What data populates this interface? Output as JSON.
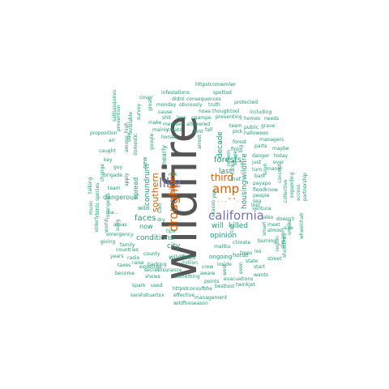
{
  "colors": {
    "tier1": "#555555",
    "tier2": "#7570b3",
    "tier3": "#d95f02",
    "tier4": "#1b9e77"
  },
  "words": [
    {
      "text": "wildfire",
      "tier": "tier1",
      "weight": 60
    },
    {
      "text": "california",
      "tier": "tier2",
      "weight": 14
    },
    {
      "text": "like",
      "tier": "tier2",
      "weight": 14
    },
    {
      "text": "drought",
      "tier": "tier3",
      "weight": 13
    },
    {
      "text": "amp",
      "tier": "tier3",
      "weight": 12
    },
    {
      "text": "third",
      "tier": "tier3",
      "weight": 10
    },
    {
      "text": "southern",
      "tier": "tier3",
      "weight": 9
    },
    {
      "text": "sierra",
      "tier": "tier3",
      "weight": 8
    },
    {
      "text": "housing",
      "tier": "tier4",
      "weight": 8
    },
    {
      "text": "wildfire",
      "tier": "tier4",
      "weight": 8
    },
    {
      "text": "forests",
      "tier": "tier4",
      "weight": 8
    },
    {
      "text": "faces",
      "tier": "tier4",
      "weight": 8
    },
    {
      "text": "decade",
      "tier": "tier4",
      "weight": 7
    },
    {
      "text": "conundrum",
      "tier": "tier4",
      "weight": 7
    },
    {
      "text": "killed",
      "tier": "tier4",
      "weight": 7
    },
    {
      "text": "last",
      "tier": "tier4",
      "weight": 7
    },
    {
      "text": "will",
      "tier": "tier4",
      "weight": 7
    },
    {
      "text": "opinion",
      "tier": "tier4",
      "weight": 6
    },
    {
      "text": "conditions",
      "tier": "tier4",
      "weight": 6
    },
    {
      "text": "spread",
      "tier": "tier4",
      "weight": 6
    },
    {
      "text": "nearly",
      "tier": "tier4",
      "weight": 6
    },
    {
      "text": "city",
      "tier": "tier4",
      "weight": 6
    },
    {
      "text": "wildfires",
      "tier": "tier4",
      "weight": 5
    },
    {
      "text": "new",
      "tier": "tier4",
      "weight": 5
    },
    {
      "text": "now",
      "tier": "tier4",
      "weight": 5
    },
    {
      "text": "can",
      "tier": "tier4",
      "weight": 5
    },
    {
      "text": "wild",
      "tier": "tier4",
      "weight": 5
    },
    {
      "text": "dangerous",
      "tier": "tier4",
      "weight": 5
    },
    {
      "text": "emergency",
      "tier": "tier4",
      "weight": 4
    },
    {
      "text": "ongoing",
      "tier": "tier4",
      "weight": 4
    },
    {
      "text": "horse",
      "tier": "tier4",
      "weight": 4
    },
    {
      "text": "climate",
      "tier": "tier4",
      "weight": 4
    },
    {
      "text": "burning",
      "tier": "tier4",
      "weight": 4
    },
    {
      "text": "state",
      "tier": "tier4",
      "weight": 4
    },
    {
      "text": "trees",
      "tier": "tier4",
      "weight": 4
    },
    {
      "text": "county",
      "tier": "tier4",
      "weight": 4
    },
    {
      "text": "risk",
      "tier": "tier4",
      "weight": 4
    },
    {
      "text": "million",
      "tier": "tier4",
      "weight": 4
    },
    {
      "text": "malibu",
      "tier": "tier4",
      "weight": 4
    },
    {
      "text": "people",
      "tier": "tier4",
      "weight": 4
    },
    {
      "text": "fire",
      "tier": "tier4",
      "weight": 4
    },
    {
      "text": "season",
      "tier": "tier4",
      "weight": 4
    },
    {
      "text": "ventura",
      "tier": "tier4",
      "weight": 4
    },
    {
      "text": "expected",
      "tier": "tier4",
      "weight": 4
    },
    {
      "text": "something",
      "tier": "tier4",
      "weight": 4
    },
    {
      "text": "insurance",
      "tier": "tier4",
      "weight": 4
    },
    {
      "text": "evacuations",
      "tier": "tier4",
      "weight": 3
    },
    {
      "text": "management",
      "tier": "tier4",
      "weight": 3
    },
    {
      "text": "wildfireseason",
      "tier": "tier4",
      "weight": 3
    },
    {
      "text": "httpstconxvfbhe",
      "tier": "tier4",
      "weight": 3
    },
    {
      "text": "sarahstuartxx",
      "tier": "tier4",
      "weight": 3
    },
    {
      "text": "besttest",
      "tier": "tier4",
      "weight": 3
    },
    {
      "text": "twinkjet",
      "tier": "tier4",
      "weight": 3
    },
    {
      "text": "effective",
      "tier": "tier4",
      "weight": 3
    },
    {
      "text": "points",
      "tier": "tier4",
      "weight": 3
    },
    {
      "text": "shows",
      "tier": "tier4",
      "weight": 3
    },
    {
      "text": "secret",
      "tier": "tier4",
      "weight": 3
    },
    {
      "text": "used",
      "tier": "tier4",
      "weight": 3
    },
    {
      "text": "spark",
      "tier": "tier4",
      "weight": 3
    },
    {
      "text": "become",
      "tier": "tier4",
      "weight": 3
    },
    {
      "text": "taxes",
      "tier": "tier4",
      "weight": 3
    },
    {
      "text": "raise",
      "tier": "tier4",
      "weight": 3
    },
    {
      "text": "backing",
      "tier": "tier4",
      "weight": 3
    },
    {
      "text": "radio",
      "tier": "tier4",
      "weight": 3
    },
    {
      "text": "years",
      "tier": "tier4",
      "weight": 3
    },
    {
      "text": "countries",
      "tier": "tier4",
      "weight": 3
    },
    {
      "text": "giving",
      "tier": "tier4",
      "weight": 3
    },
    {
      "text": "family",
      "tier": "tier4",
      "weight": 3
    },
    {
      "text": "tips",
      "tier": "tier4",
      "weight": 3
    },
    {
      "text": "dry",
      "tier": "tier4",
      "weight": 3
    },
    {
      "text": "areas",
      "tier": "tier4",
      "weight": 3
    },
    {
      "text": "world",
      "tier": "tier4",
      "weight": 3
    },
    {
      "text": "song",
      "tier": "tier4",
      "weight": 3
    },
    {
      "text": "music",
      "tier": "tier4",
      "weight": 3
    },
    {
      "text": "elderly",
      "tier": "tier4",
      "weight": 3
    },
    {
      "text": "team",
      "tier": "tier4",
      "weight": 3
    },
    {
      "text": "brigade",
      "tier": "tier4",
      "weight": 3
    },
    {
      "text": "losangeles",
      "tier": "tier4",
      "weight": 3
    },
    {
      "text": "change",
      "tier": "tier4",
      "weight": 3
    },
    {
      "text": "species",
      "tier": "tier4",
      "weight": 3
    },
    {
      "text": "talking",
      "tier": "tier4",
      "weight": 3
    },
    {
      "text": "birds",
      "tier": "tier4",
      "weight": 3
    },
    {
      "text": "ma...",
      "tier": "tier4",
      "weight": 3
    },
    {
      "text": "among",
      "tier": "tier4",
      "weight": 3
    },
    {
      "text": "apply",
      "tier": "tier4",
      "weight": 3
    },
    {
      "text": "guy",
      "tier": "tier4",
      "weight": 3
    },
    {
      "text": "key",
      "tier": "tier4",
      "weight": 3
    },
    {
      "text": "caught",
      "tier": "tier4",
      "weight": 3
    },
    {
      "text": "air",
      "tier": "tier4",
      "weight": 3
    },
    {
      "text": "proposition",
      "tier": "tier4",
      "weight": 3
    },
    {
      "text": "high",
      "tier": "tier4",
      "weight": 3
    },
    {
      "text": "due",
      "tier": "tier4",
      "weight": 3
    },
    {
      "text": "available",
      "tier": "tier4",
      "weight": 3
    },
    {
      "text": "domestic",
      "tier": "tier4",
      "weight": 3
    },
    {
      "text": "prevention",
      "tier": "tier4",
      "weight": 3
    },
    {
      "text": "survey",
      "tier": "tier4",
      "weight": 3
    },
    {
      "text": "great",
      "tier": "tier4",
      "weight": 3
    },
    {
      "text": "saltsasquires",
      "tier": "tier4",
      "weight": 3
    },
    {
      "text": "cover",
      "tier": "tier4",
      "weight": 3
    },
    {
      "text": "infestations",
      "tier": "tier4",
      "weight": 3
    },
    {
      "text": "monday",
      "tier": "tier4",
      "weight": 3
    },
    {
      "text": "didnt",
      "tier": "tier4",
      "weight": 3
    },
    {
      "text": "obviously",
      "tier": "tier4",
      "weight": 3
    },
    {
      "text": "cause",
      "tier": "tier4",
      "weight": 3
    },
    {
      "text": "shit",
      "tier": "tier4",
      "weight": 3
    },
    {
      "text": "member",
      "tier": "tier4",
      "weight": 3
    },
    {
      "text": "make",
      "tier": "tier4",
      "weight": 3
    },
    {
      "text": "mainly",
      "tier": "tier4",
      "weight": 3
    },
    {
      "text": "horses",
      "tier": "tier4",
      "weight": 3
    },
    {
      "text": "create",
      "tier": "tier4",
      "weight": 3
    },
    {
      "text": "google",
      "tier": "tier4",
      "weight": 3
    },
    {
      "text": "loss",
      "tier": "tier4",
      "weight": 3
    },
    {
      "text": "pgampe",
      "tier": "tier4",
      "weight": 3
    },
    {
      "text": "allowered",
      "tier": "tier4",
      "weight": 3
    },
    {
      "text": "dont",
      "tier": "tier4",
      "weight": 3
    },
    {
      "text": "fall",
      "tier": "tier4",
      "weight": 3
    },
    {
      "text": "truth",
      "tier": "tier4",
      "weight": 3
    },
    {
      "text": "consequences",
      "tier": "tier4",
      "weight": 3
    },
    {
      "text": "noaa",
      "tier": "tier4",
      "weight": 3
    },
    {
      "text": "though",
      "tier": "tier4",
      "weight": 3
    },
    {
      "text": "tool",
      "tier": "tier4",
      "weight": 3
    },
    {
      "text": "spotted",
      "tier": "tier4",
      "weight": 3
    },
    {
      "text": "httpstcomwmlwr",
      "tier": "tier4",
      "weight": 3
    },
    {
      "text": "protected",
      "tier": "tier4",
      "weight": 3
    },
    {
      "text": "preventing",
      "tier": "tier4",
      "weight": 3
    },
    {
      "text": "pick",
      "tier": "tier4",
      "weight": 3
    },
    {
      "text": "halloween",
      "tier": "tier4",
      "weight": 3
    },
    {
      "text": "homes",
      "tier": "tier4",
      "weight": 3
    },
    {
      "text": "needs",
      "tier": "tier4",
      "weight": 3
    },
    {
      "text": "including",
      "tier": "tier4",
      "weight": 3
    },
    {
      "text": "grave",
      "tier": "tier4",
      "weight": 3
    },
    {
      "text": "public",
      "tier": "tier4",
      "weight": 3
    },
    {
      "text": "team",
      "tier": "tier4",
      "weight": 3
    },
    {
      "text": "managers",
      "tier": "tier4",
      "weight": 3
    },
    {
      "text": "parts",
      "tier": "tier4",
      "weight": 3
    },
    {
      "text": "forest",
      "tier": "tier4",
      "weight": 3
    },
    {
      "text": "maybe",
      "tier": "tier4",
      "weight": 3
    },
    {
      "text": "today",
      "tier": "tier4",
      "weight": 3
    },
    {
      "text": "danger",
      "tier": "tier4",
      "weight": 3
    },
    {
      "text": "just",
      "tier": "tier4",
      "weight": 3
    },
    {
      "text": "ever",
      "tier": "tier4",
      "weight": 3
    },
    {
      "text": "many",
      "tier": "tier4",
      "weight": 3
    },
    {
      "text": "turn",
      "tier": "tier4",
      "weight": 3
    },
    {
      "text": "payapo",
      "tier": "tier4",
      "weight": 3
    },
    {
      "text": "floodknow",
      "tier": "tier4",
      "weight": 3
    },
    {
      "text": "lost",
      "tier": "tier4",
      "weight": 3
    },
    {
      "text": "doesn't",
      "tier": "tier4",
      "weight": 3
    },
    {
      "text": "size",
      "tier": "tier4",
      "weight": 3
    },
    {
      "text": "almost",
      "tier": "tier4",
      "weight": 3
    },
    {
      "text": "access",
      "tier": "tier4",
      "weight": 3
    },
    {
      "text": "expanding",
      "tier": "tier4",
      "weight": 3
    },
    {
      "text": "partnership",
      "tier": "tier4",
      "weight": 3
    },
    {
      "text": "collective",
      "tier": "tier4",
      "weight": 3
    },
    {
      "text": "concept",
      "tier": "tier4",
      "weight": 3
    },
    {
      "text": "shootfired",
      "tier": "tier4",
      "weight": 3
    },
    {
      "text": "wheelchair",
      "tier": "tier4",
      "weight": 3
    },
    {
      "text": "street",
      "tier": "tier4",
      "weight": 3
    },
    {
      "text": "meet",
      "tier": "tier4",
      "weight": 3
    },
    {
      "text": "also",
      "tier": "tier4",
      "weight": 3
    },
    {
      "text": "start",
      "tier": "tier4",
      "weight": 3
    },
    {
      "text": "wants",
      "tier": "tier4",
      "weight": 3
    },
    {
      "text": "los",
      "tier": "tier4",
      "weight": 3
    },
    {
      "text": "inside",
      "tier": "tier4",
      "weight": 3
    },
    {
      "text": "crew",
      "tier": "tier4",
      "weight": 3
    },
    {
      "text": "aware",
      "tier": "tier4",
      "weight": 3
    },
    {
      "text": "west",
      "tier": "tier4",
      "weight": 3
    },
    {
      "text": "even",
      "tier": "tier4",
      "weight": 3
    },
    {
      "text": "region",
      "tier": "tier4",
      "weight": 3
    },
    {
      "text": "stream",
      "tier": "tier4",
      "weight": 3
    },
    {
      "text": "smoke",
      "tier": "tier4",
      "weight": 3
    },
    {
      "text": "sea",
      "tier": "tier4",
      "weight": 3
    },
    {
      "text": "smart",
      "tier": "tier4",
      "weight": 3
    },
    {
      "text": "yes",
      "tier": "tier4",
      "weight": 3
    },
    {
      "text": "bark",
      "tier": "tier4",
      "weight": 3
    },
    {
      "text": "top",
      "tier": "tier4",
      "weight": 3
    },
    {
      "text": "ranks",
      "tier": "tier4",
      "weight": 3
    },
    {
      "text": "soon",
      "tier": "tier4",
      "weight": 3
    },
    {
      "text": "reform",
      "tier": "tier4",
      "weight": 3
    },
    {
      "text": "shape",
      "tier": "tier4",
      "weight": 3
    },
    {
      "text": "big",
      "tier": "tier4",
      "weight": 3
    },
    {
      "text": "arrest",
      "tier": "tier4",
      "weight": 3
    },
    {
      "text": "firef...",
      "tier": "tier4",
      "weight": 3
    },
    {
      "text": ". . . . \" \" . .",
      "tier": "tier3",
      "weight": 3
    }
  ]
}
